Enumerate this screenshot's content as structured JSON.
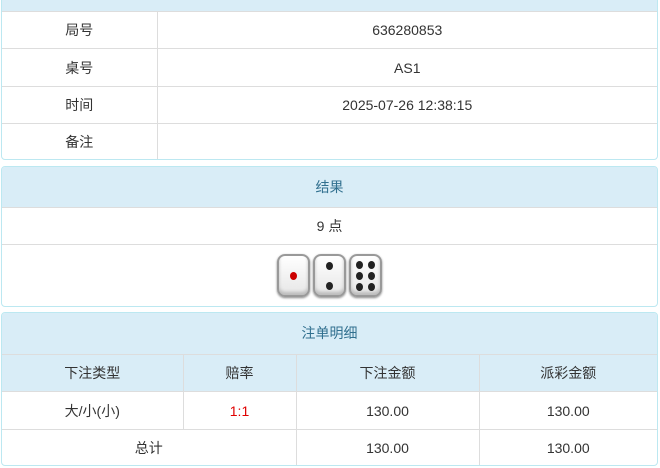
{
  "info": {
    "rows": [
      {
        "label": "局号",
        "value": "636280853"
      },
      {
        "label": "桌号",
        "value": "AS1"
      },
      {
        "label": "时间",
        "value": "2025-07-26 12:38:15"
      },
      {
        "label": "备注",
        "value": ""
      }
    ]
  },
  "result": {
    "title": "结果",
    "points": "9 点",
    "dice": [
      1,
      2,
      6
    ]
  },
  "bets": {
    "title": "注单明细",
    "columns": [
      "下注类型",
      "赔率",
      "下注金额",
      "派彩金额"
    ],
    "rows": [
      {
        "type": "大/小(小)",
        "odds": "1:1",
        "amount": "130.00",
        "payout": "130.00"
      }
    ],
    "total": {
      "label": "总计",
      "amount": "130.00",
      "payout": "130.00"
    },
    "odds_color": "#e00000"
  }
}
